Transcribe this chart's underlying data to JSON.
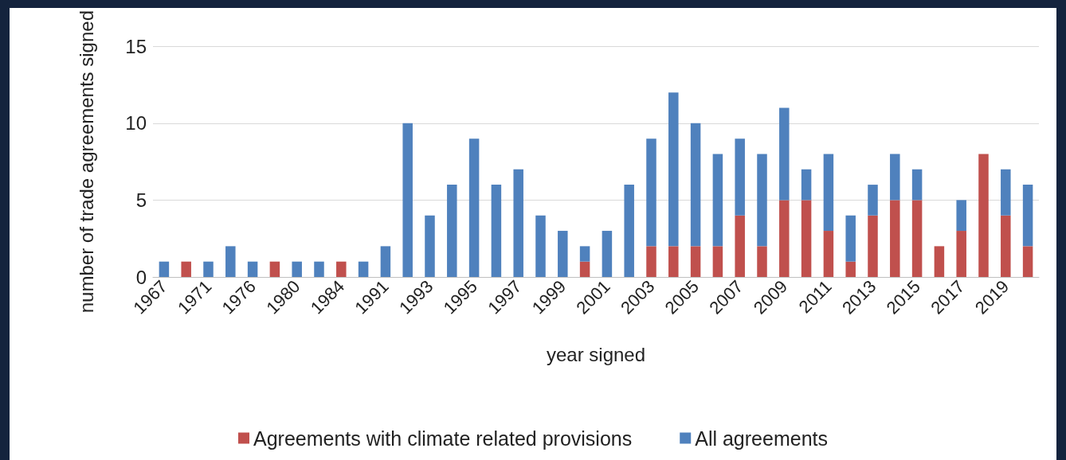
{
  "chart_data": {
    "type": "bar",
    "stacked": true,
    "xlabel": "year signed",
    "ylabel": "number of trade agreements signed",
    "categories": [
      "1967",
      null,
      "1971",
      null,
      "1976",
      null,
      "1980",
      null,
      "1984",
      null,
      "1991",
      null,
      "1993",
      null,
      "1995",
      null,
      "1997",
      null,
      "1999",
      null,
      "2001",
      null,
      "2003",
      null,
      "2005",
      null,
      "2007",
      null,
      "2009",
      null,
      "2011",
      null,
      "2013",
      null,
      "2015",
      null,
      "2017",
      null,
      "2019",
      null
    ],
    "series": [
      {
        "name": "Agreements with climate related provisions",
        "color": "#c0504d",
        "values": [
          0,
          1,
          0,
          0,
          0,
          1,
          0,
          0,
          1,
          0,
          0,
          0,
          0,
          0,
          0,
          0,
          0,
          0,
          0,
          1,
          0,
          0,
          2,
          2,
          2,
          2,
          4,
          2,
          5,
          5,
          3,
          1,
          4,
          5,
          5,
          2,
          3,
          8,
          4,
          2
        ]
      },
      {
        "name": "All agreements",
        "color": "#4f81bd",
        "values": [
          1,
          0,
          1,
          2,
          1,
          0,
          1,
          1,
          0,
          1,
          2,
          10,
          4,
          6,
          9,
          6,
          7,
          4,
          3,
          1,
          3,
          6,
          7,
          10,
          8,
          6,
          5,
          6,
          6,
          2,
          5,
          3,
          2,
          3,
          2,
          0,
          2,
          0,
          3,
          4
        ]
      }
    ],
    "ylim": [
      0,
      15
    ],
    "yticks": [
      0,
      5,
      10,
      15
    ],
    "grid": "y",
    "legend": "bottom"
  }
}
